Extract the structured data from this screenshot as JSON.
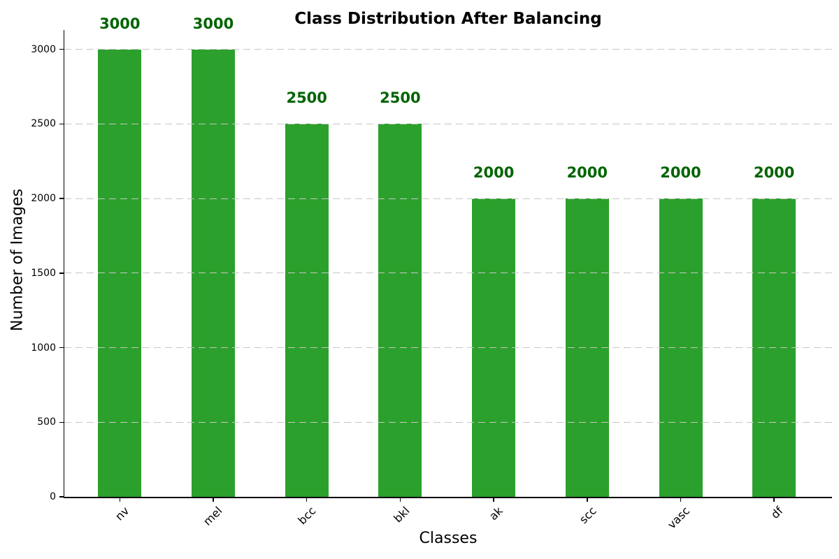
{
  "chart_data": {
    "type": "bar",
    "title": "Class Distribution After Balancing",
    "xlabel": "Classes",
    "ylabel": "Number of Images",
    "categories": [
      "nv",
      "mel",
      "bcc",
      "bkl",
      "ak",
      "scc",
      "vasc",
      "df"
    ],
    "values": [
      3000,
      3000,
      2500,
      2500,
      2000,
      2000,
      2000,
      2000
    ],
    "bar_value_labels": [
      "3000",
      "3000",
      "2500",
      "2500",
      "2000",
      "2000",
      "2000",
      "2000"
    ],
    "yticks": [
      0,
      500,
      1000,
      1500,
      2000,
      2500,
      3000
    ],
    "ylim": [
      0,
      3130
    ],
    "grid": {
      "axis": "y",
      "style": "dashed",
      "color": "#c6c6c6",
      "on_top_of_bars": true
    },
    "legend": "none",
    "colors": {
      "bar": "#2ca02c",
      "value_label": "#006400",
      "text": "#000000",
      "background": "#ffffff"
    }
  }
}
